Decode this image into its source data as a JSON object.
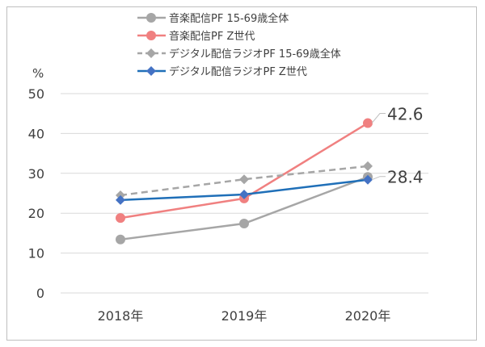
{
  "chart_data": {
    "type": "line",
    "ylabel": "%",
    "categories": [
      "2018年",
      "2019年",
      "2020年"
    ],
    "ylim": [
      0,
      50
    ],
    "yticks": [
      0,
      10,
      20,
      30,
      40,
      50
    ],
    "grid": true,
    "legend_position": "top",
    "series": [
      {
        "name": "音楽配信PF 15-69歳全体",
        "values": [
          13.4,
          17.4,
          29.1
        ],
        "color": "#a6a6a6",
        "dash": false,
        "marker": "circle"
      },
      {
        "name": "音楽配信PF Z世代",
        "values": [
          18.8,
          23.7,
          42.6
        ],
        "color": "#f08080",
        "dash": false,
        "marker": "circle"
      },
      {
        "name": "デジタル配信ラジオPF 15-69歳全体",
        "values": [
          24.5,
          28.5,
          31.8
        ],
        "color": "#a6a6a6",
        "dash": true,
        "marker": "diamond"
      },
      {
        "name": "デジタル配信ラジオPF Z世代",
        "values": [
          23.3,
          24.7,
          28.4
        ],
        "color": "#1f6fb8",
        "markerColor": "#4472c4",
        "dash": false,
        "marker": "diamond"
      }
    ],
    "annotations": [
      {
        "series": 1,
        "category": "2020年",
        "text": "42.6"
      },
      {
        "series": 3,
        "category": "2020年",
        "text": "28.4"
      }
    ]
  }
}
